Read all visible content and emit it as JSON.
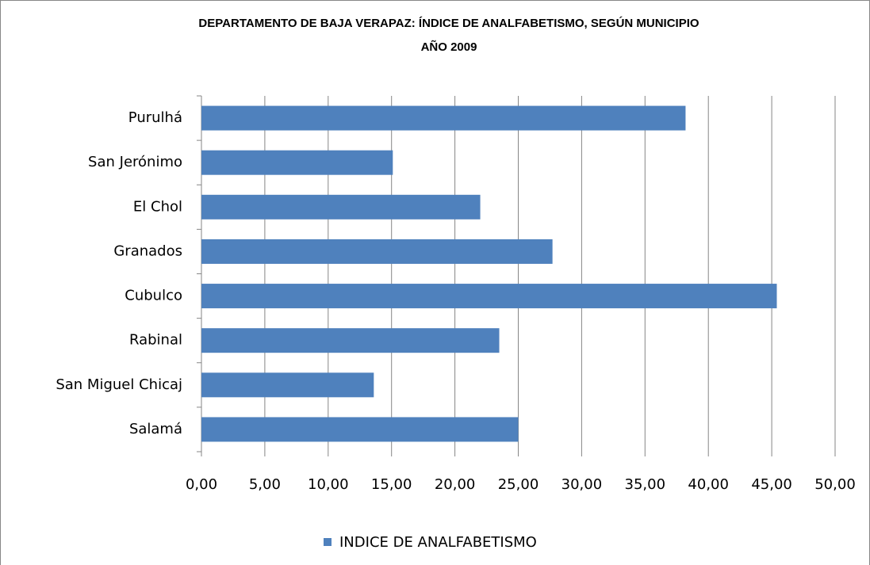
{
  "chart_data": {
    "type": "bar",
    "orientation": "horizontal",
    "title": "DEPARTAMENTO DE BAJA VERAPAZ:  ÍNDICE DE ANALFABETISMO, SEGÚN MUNICIPIO",
    "subtitle": "AÑO 2009",
    "categories": [
      "Salamá",
      "San Miguel Chicaj",
      "Rabinal",
      "Cubulco",
      "Granados",
      "El Chol",
      "San Jerónimo",
      "Purulhá"
    ],
    "series": [
      {
        "name": "INDICE DE ANALFABETISMO",
        "color": "#4f81bd",
        "values": [
          25.0,
          13.6,
          23.5,
          45.4,
          27.7,
          22.0,
          15.1,
          38.2
        ]
      }
    ],
    "xlim": [
      0,
      50
    ],
    "xticks": [
      {
        "value": 0,
        "label": "0,00"
      },
      {
        "value": 5,
        "label": "5,00"
      },
      {
        "value": 10,
        "label": "10,00"
      },
      {
        "value": 15,
        "label": "15,00"
      },
      {
        "value": 20,
        "label": "20,00"
      },
      {
        "value": 25,
        "label": "25,00"
      },
      {
        "value": 30,
        "label": "30,00"
      },
      {
        "value": 35,
        "label": "35,00"
      },
      {
        "value": 40,
        "label": "40,00"
      },
      {
        "value": 45,
        "label": "45,00"
      },
      {
        "value": 50,
        "label": "50,00"
      }
    ],
    "grid": true,
    "legend": "bottom"
  }
}
